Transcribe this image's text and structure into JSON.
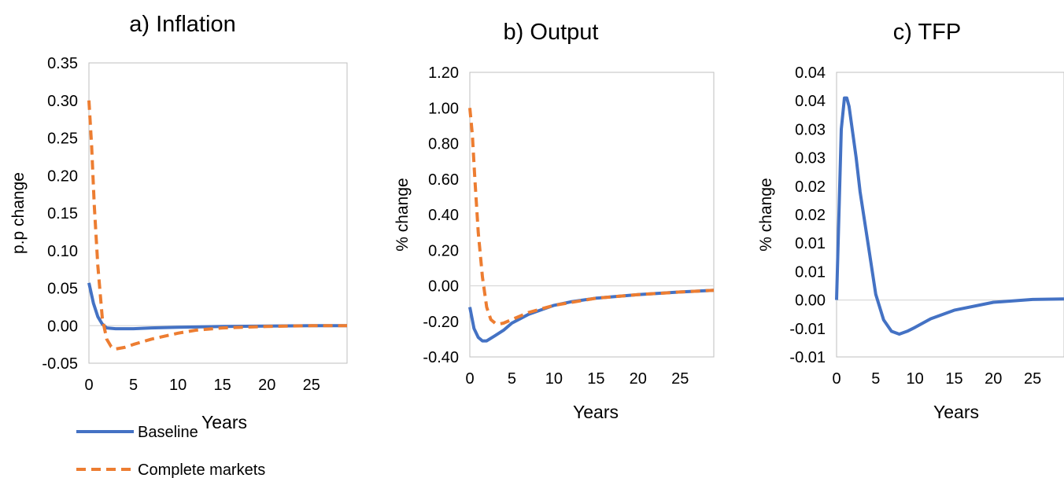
{
  "colors": {
    "baseline": "#4472C4",
    "complete_markets": "#ED7D31",
    "zero_line": "#D9D9D9",
    "plot_border": "#BFBFBF"
  },
  "legend": {
    "placement": "bottom-left",
    "items": [
      {
        "label": "Baseline",
        "style": "solid",
        "color": "#4472C4"
      },
      {
        "label": "Complete markets",
        "style": "dashed",
        "color": "#ED7D31"
      }
    ]
  },
  "chart_data": [
    {
      "type": "line",
      "title": "a) Inflation",
      "xlabel": "Years",
      "ylabel": "p.p change",
      "xlim": [
        0,
        29
      ],
      "ylim": [
        -0.05,
        0.35
      ],
      "xticks": [
        0,
        5,
        10,
        15,
        20,
        25
      ],
      "yticks": [
        -0.05,
        0.0,
        0.05,
        0.1,
        0.15,
        0.2,
        0.25,
        0.3,
        0.35
      ],
      "ytick_labels": [
        "-0.05",
        "0.00",
        "0.05",
        "0.10",
        "0.15",
        "0.20",
        "0.25",
        "0.30",
        "0.35"
      ],
      "zero_line": true,
      "grid": false,
      "series": [
        {
          "name": "Baseline",
          "color": "#4472C4",
          "style": "solid",
          "x": [
            0,
            0.5,
            1,
            1.5,
            2,
            3,
            4,
            5,
            7,
            10,
            15,
            20,
            25,
            29
          ],
          "y": [
            0.057,
            0.03,
            0.012,
            0.002,
            -0.003,
            -0.004,
            -0.004,
            -0.004,
            -0.003,
            -0.002,
            -0.001,
            -0.0005,
            0.0,
            0.0
          ]
        },
        {
          "name": "Complete markets",
          "color": "#ED7D31",
          "style": "dashed",
          "x": [
            0,
            0.3,
            0.6,
            1,
            1.5,
            2,
            2.5,
            3,
            4,
            5,
            7,
            10,
            12,
            15,
            20,
            25,
            29
          ],
          "y": [
            0.3,
            0.24,
            0.16,
            0.08,
            0.01,
            -0.018,
            -0.028,
            -0.031,
            -0.029,
            -0.025,
            -0.018,
            -0.01,
            -0.006,
            -0.003,
            -0.001,
            0.0,
            0.0
          ]
        }
      ]
    },
    {
      "type": "line",
      "title": "b) Output",
      "xlabel": "Years",
      "ylabel": "% change",
      "xlim": [
        0,
        29
      ],
      "ylim": [
        -0.4,
        1.2
      ],
      "xticks": [
        0,
        5,
        10,
        15,
        20,
        25
      ],
      "yticks": [
        -0.4,
        -0.2,
        0.0,
        0.2,
        0.4,
        0.6,
        0.8,
        1.0,
        1.2
      ],
      "ytick_labels": [
        "-0.40",
        "-0.20",
        "0.00",
        "0.20",
        "0.40",
        "0.60",
        "0.80",
        "1.00",
        "1.20"
      ],
      "zero_line": true,
      "grid": false,
      "series": [
        {
          "name": "Baseline",
          "color": "#4472C4",
          "style": "solid",
          "x": [
            0,
            0.5,
            1,
            1.5,
            2,
            3,
            4,
            5,
            7,
            10,
            12,
            15,
            20,
            25,
            29
          ],
          "y": [
            -0.12,
            -0.24,
            -0.29,
            -0.31,
            -0.31,
            -0.28,
            -0.25,
            -0.21,
            -0.16,
            -0.11,
            -0.09,
            -0.07,
            -0.05,
            -0.035,
            -0.025
          ]
        },
        {
          "name": "Complete markets",
          "color": "#ED7D31",
          "style": "dashed",
          "x": [
            0,
            0.3,
            0.6,
            1,
            1.5,
            2,
            2.5,
            3,
            3.5,
            4,
            5,
            7,
            10,
            15,
            20,
            25,
            29
          ],
          "y": [
            1.0,
            0.85,
            0.6,
            0.3,
            0.05,
            -0.12,
            -0.19,
            -0.21,
            -0.215,
            -0.21,
            -0.19,
            -0.15,
            -0.11,
            -0.07,
            -0.05,
            -0.035,
            -0.025
          ]
        }
      ]
    },
    {
      "type": "line",
      "title": "c) TFP",
      "xlabel": "Years",
      "ylabel": "% change",
      "xlim": [
        0,
        29
      ],
      "ylim": [
        -0.01,
        0.04
      ],
      "xticks": [
        0,
        5,
        10,
        15,
        20,
        25
      ],
      "yticks": [
        -0.01,
        -0.005,
        0.0,
        0.005,
        0.01,
        0.015,
        0.02,
        0.025,
        0.03,
        0.035,
        0.04
      ],
      "ytick_labels": [
        "-0.01",
        "-0.01",
        "0.00",
        "0.01",
        "0.01",
        "0.02",
        "0.02",
        "0.03",
        "0.03",
        "0.04",
        "0.04"
      ],
      "zero_line": true,
      "grid": false,
      "series": [
        {
          "name": "Baseline",
          "color": "#4472C4",
          "style": "solid",
          "x": [
            0,
            0.3,
            0.6,
            1,
            1.3,
            1.6,
            2,
            2.5,
            3,
            4,
            5,
            6,
            7,
            8,
            9,
            10,
            12,
            15,
            20,
            25,
            29
          ],
          "y": [
            0.0,
            0.015,
            0.03,
            0.0355,
            0.0355,
            0.034,
            0.03,
            0.025,
            0.019,
            0.01,
            0.001,
            -0.0035,
            -0.0055,
            -0.006,
            -0.0055,
            -0.0048,
            -0.0033,
            -0.0018,
            -0.0004,
            0.0001,
            0.0002
          ]
        }
      ]
    }
  ]
}
